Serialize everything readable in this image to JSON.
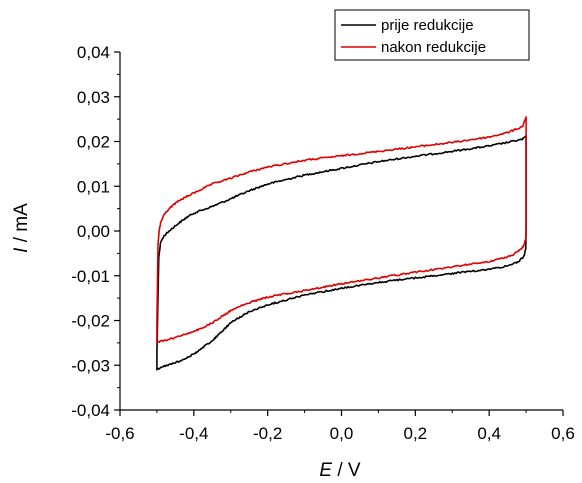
{
  "chart_data": {
    "type": "line",
    "title": "",
    "xlabel_var": "E",
    "xlabel_unit": " / V",
    "ylabel_var": "I",
    "ylabel_unit": " / mA",
    "xlim": [
      -0.6,
      0.6
    ],
    "ylim": [
      -0.04,
      0.04
    ],
    "xticks": [
      -0.6,
      -0.4,
      -0.2,
      0.0,
      0.2,
      0.4,
      0.6
    ],
    "xtick_labels": [
      "-0,6",
      "-0,4",
      "-0,2",
      "0,0",
      "0,2",
      "0,4",
      "0,6"
    ],
    "yticks": [
      -0.04,
      -0.03,
      -0.02,
      -0.01,
      0.0,
      0.01,
      0.02,
      0.03,
      0.04
    ],
    "ytick_labels": [
      "-0,04",
      "-0,03",
      "-0,02",
      "-0,01",
      "0,00",
      "0,01",
      "0,02",
      "0,03",
      "0,04"
    ],
    "grid": false,
    "legend_position": "top-right",
    "series": [
      {
        "name": "prije redukcije",
        "color": "#000000",
        "x": [
          -0.5,
          -0.495,
          -0.49,
          -0.48,
          -0.46,
          -0.44,
          -0.42,
          -0.4,
          -0.35,
          -0.3,
          -0.25,
          -0.2,
          -0.1,
          0.0,
          0.1,
          0.2,
          0.3,
          0.4,
          0.45,
          0.49,
          0.5,
          0.5,
          0.5,
          0.499,
          0.495,
          0.49,
          0.48,
          0.46,
          0.44,
          0.4,
          0.3,
          0.2,
          0.1,
          0.0,
          -0.1,
          -0.2,
          -0.25,
          -0.3,
          -0.35,
          -0.4,
          -0.45,
          -0.48,
          -0.5,
          -0.5
        ],
        "y": [
          -0.027,
          -0.006,
          -0.0025,
          -0.001,
          0.0005,
          0.0018,
          0.003,
          0.004,
          0.0055,
          0.0072,
          0.009,
          0.0105,
          0.0125,
          0.014,
          0.0155,
          0.0167,
          0.0178,
          0.019,
          0.0198,
          0.0205,
          0.0212,
          0.012,
          0.0,
          -0.004,
          -0.0055,
          -0.006,
          -0.0068,
          -0.0075,
          -0.008,
          -0.0085,
          -0.0095,
          -0.0105,
          -0.0115,
          -0.0128,
          -0.0143,
          -0.0165,
          -0.018,
          -0.0205,
          -0.0245,
          -0.0275,
          -0.0295,
          -0.0302,
          -0.031,
          -0.027
        ]
      },
      {
        "name": "nakon redukcije",
        "color": "#e00000",
        "x": [
          -0.5,
          -0.497,
          -0.494,
          -0.49,
          -0.48,
          -0.46,
          -0.44,
          -0.4,
          -0.35,
          -0.3,
          -0.25,
          -0.2,
          -0.1,
          0.0,
          0.1,
          0.2,
          0.3,
          0.4,
          0.45,
          0.49,
          0.5,
          0.5,
          0.5,
          0.499,
          0.495,
          0.49,
          0.48,
          0.46,
          0.44,
          0.4,
          0.3,
          0.2,
          0.1,
          0.0,
          -0.1,
          -0.2,
          -0.25,
          -0.3,
          -0.35,
          -0.4,
          -0.45,
          -0.48,
          -0.5,
          -0.5
        ],
        "y": [
          -0.02,
          -0.003,
          0.0,
          0.0018,
          0.0038,
          0.0055,
          0.0068,
          0.0085,
          0.0105,
          0.0118,
          0.0132,
          0.0143,
          0.0158,
          0.0168,
          0.0178,
          0.0188,
          0.0198,
          0.021,
          0.022,
          0.0233,
          0.0255,
          0.015,
          0.0,
          -0.0018,
          -0.003,
          -0.0037,
          -0.0045,
          -0.0055,
          -0.006,
          -0.0068,
          -0.008,
          -0.0092,
          -0.0105,
          -0.0118,
          -0.0133,
          -0.0148,
          -0.016,
          -0.0178,
          -0.0205,
          -0.0225,
          -0.0238,
          -0.0245,
          -0.0248,
          -0.02
        ]
      }
    ]
  }
}
